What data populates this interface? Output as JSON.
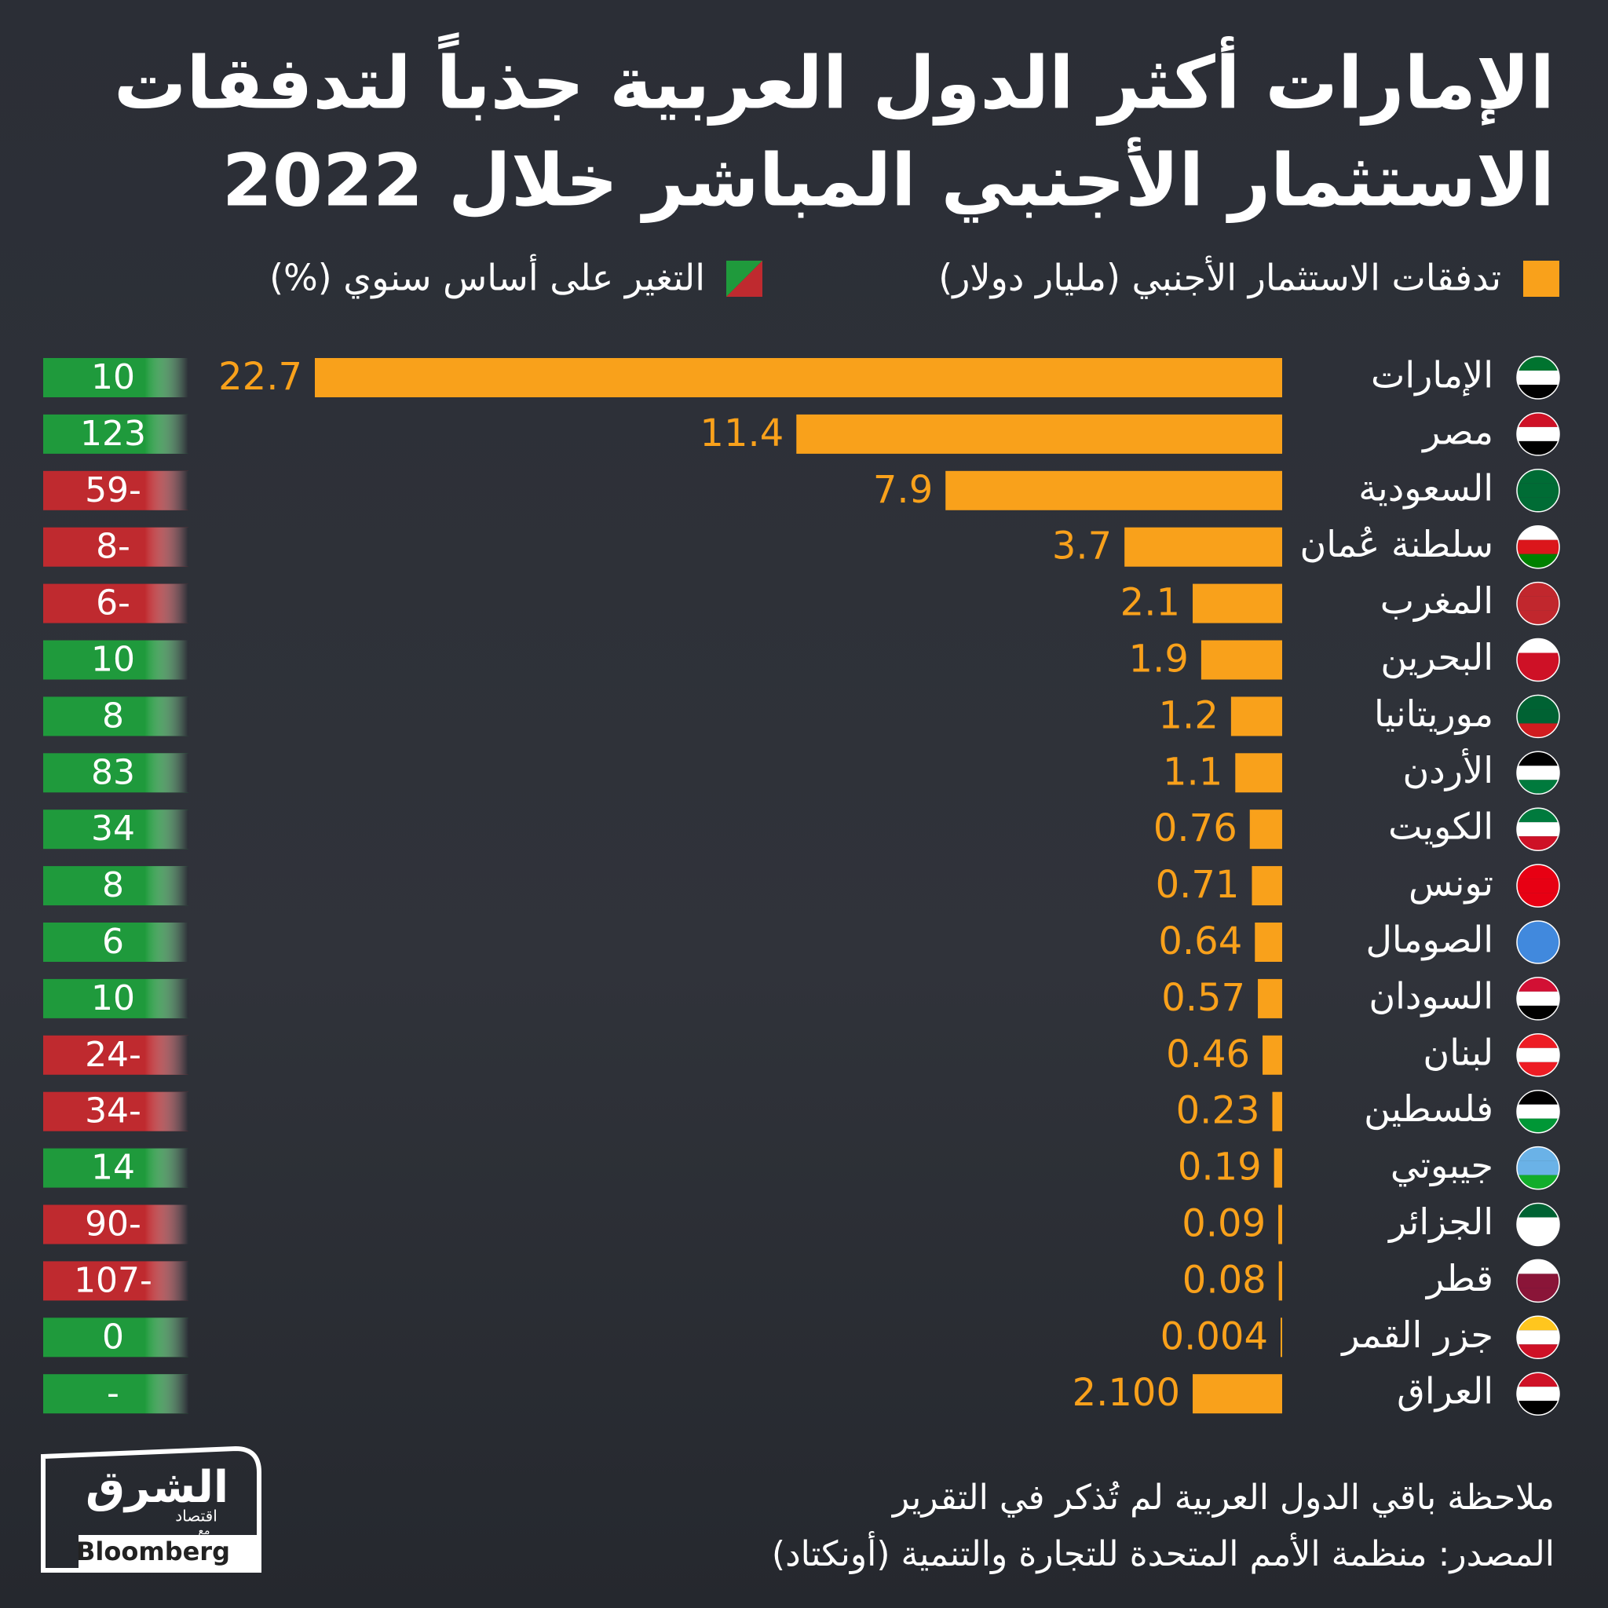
{
  "chart_data": {
    "type": "bar",
    "title": [
      "الإمارات أكثر الدول العربية جذباً لتدفقات",
      "الاستثمار الأجنبي المباشر خلال 2022"
    ],
    "categories": [
      "الإمارات",
      "مصر",
      "السعودية",
      "سلطنة عُمان",
      "المغرب",
      "البحرين",
      "موريتانيا",
      "الأردن",
      "الكويت",
      "تونس",
      "الصومال",
      "السودان",
      "لبنان",
      "فلسطين",
      "جيبوتي",
      "الجزائر",
      "قطر",
      "جزر القمر",
      "العراق"
    ],
    "series": [
      {
        "name": "تدفقات الاستثمار الأجنبي (مليار دولار)",
        "color": "#f9a11b",
        "values": [
          22.7,
          11.4,
          7.9,
          3.7,
          2.1,
          1.9,
          1.2,
          1.1,
          0.76,
          0.71,
          0.64,
          0.57,
          0.46,
          0.23,
          0.19,
          0.09,
          0.08,
          0.004,
          2.1
        ],
        "value_labels": [
          "22.7",
          "11.4",
          "7.9",
          "3.7",
          "2.1",
          "1.9",
          "1.2",
          "1.1",
          "0.76",
          "0.71",
          "0.64",
          "0.57",
          "0.46",
          "0.23",
          "0.19",
          "0.09",
          "0.08",
          "0.004",
          "2.100"
        ]
      },
      {
        "name": "التغير على أساس سنوي (%)",
        "color_positive": "#1f9a3c",
        "color_negative": "#bf2a2f",
        "values": [
          10,
          123,
          -59,
          -8,
          -6,
          10,
          8,
          83,
          34,
          8,
          6,
          10,
          -24,
          -34,
          14,
          -90,
          -107,
          0,
          null
        ],
        "value_labels": [
          "10",
          "123",
          "59-",
          "8-",
          "6-",
          "10",
          "8",
          "83",
          "34",
          "8",
          "6",
          "10",
          "24-",
          "34-",
          "14",
          "90-",
          "107-",
          "0",
          "-"
        ]
      }
    ],
    "note": "ملاحظة باقي الدول العربية لم تُذكر في التقرير",
    "source": "المصدر: منظمة الأمم المتحدة للتجارة والتنمية (أونكتاد)"
  },
  "branding": {
    "name": "الشرق",
    "sub": "اقتصاد",
    "with": "مع",
    "partner": "Bloomberg"
  }
}
